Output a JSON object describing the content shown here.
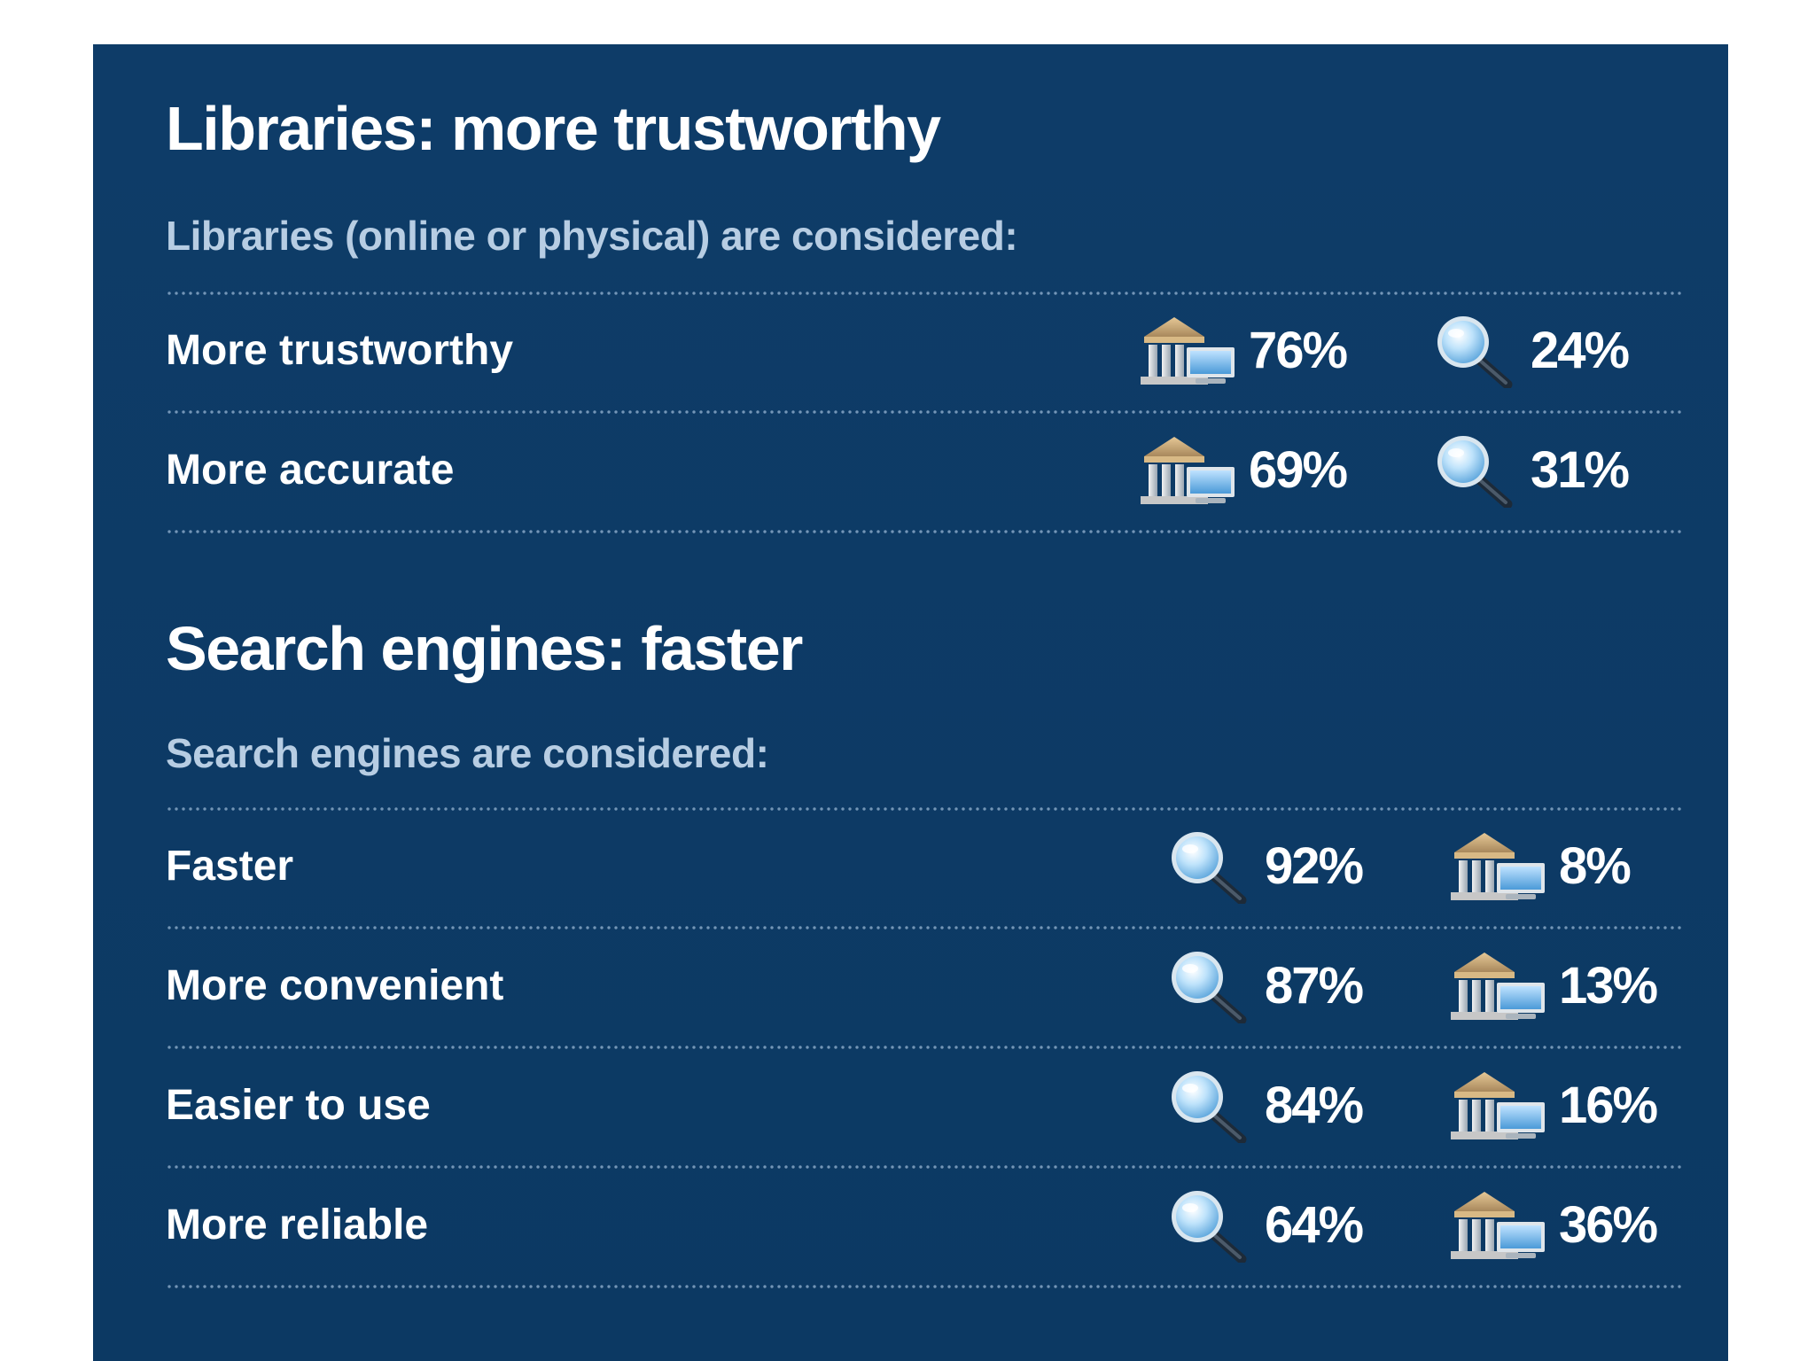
{
  "colors": {
    "panel_background": "#0d3b66",
    "title_text": "#ffffff",
    "subtitle_text": "#b7cde3",
    "library_icon": "#c9a877",
    "search_icon": "#8fc3ea"
  },
  "icons": {
    "library": "library-building-icon",
    "search": "magnifying-glass-icon"
  },
  "chart_data": [
    {
      "type": "table",
      "title": "Libraries: more trustworthy",
      "subtitle": "Libraries (online or physical) are considered:",
      "rows": [
        {
          "label": "More trustworthy",
          "values": [
            {
              "icon": "library",
              "value": 76,
              "text": "76%"
            },
            {
              "icon": "search",
              "value": 24,
              "text": "24%"
            }
          ]
        },
        {
          "label": "More accurate",
          "values": [
            {
              "icon": "library",
              "value": 69,
              "text": "69%"
            },
            {
              "icon": "search",
              "value": 31,
              "text": "31%"
            }
          ]
        }
      ]
    },
    {
      "type": "table",
      "title": "Search engines: faster",
      "subtitle": "Search engines are considered:",
      "rows": [
        {
          "label": "Faster",
          "values": [
            {
              "icon": "search",
              "value": 92,
              "text": "92%"
            },
            {
              "icon": "library",
              "value": 8,
              "text": "8%"
            }
          ]
        },
        {
          "label": "More convenient",
          "values": [
            {
              "icon": "search",
              "value": 87,
              "text": "87%"
            },
            {
              "icon": "library",
              "value": 13,
              "text": "13%"
            }
          ]
        },
        {
          "label": "Easier to use",
          "values": [
            {
              "icon": "search",
              "value": 84,
              "text": "84%"
            },
            {
              "icon": "library",
              "value": 16,
              "text": "16%"
            }
          ]
        },
        {
          "label": "More reliable",
          "values": [
            {
              "icon": "search",
              "value": 64,
              "text": "64%"
            },
            {
              "icon": "library",
              "value": 36,
              "text": "36%"
            }
          ]
        }
      ]
    }
  ]
}
